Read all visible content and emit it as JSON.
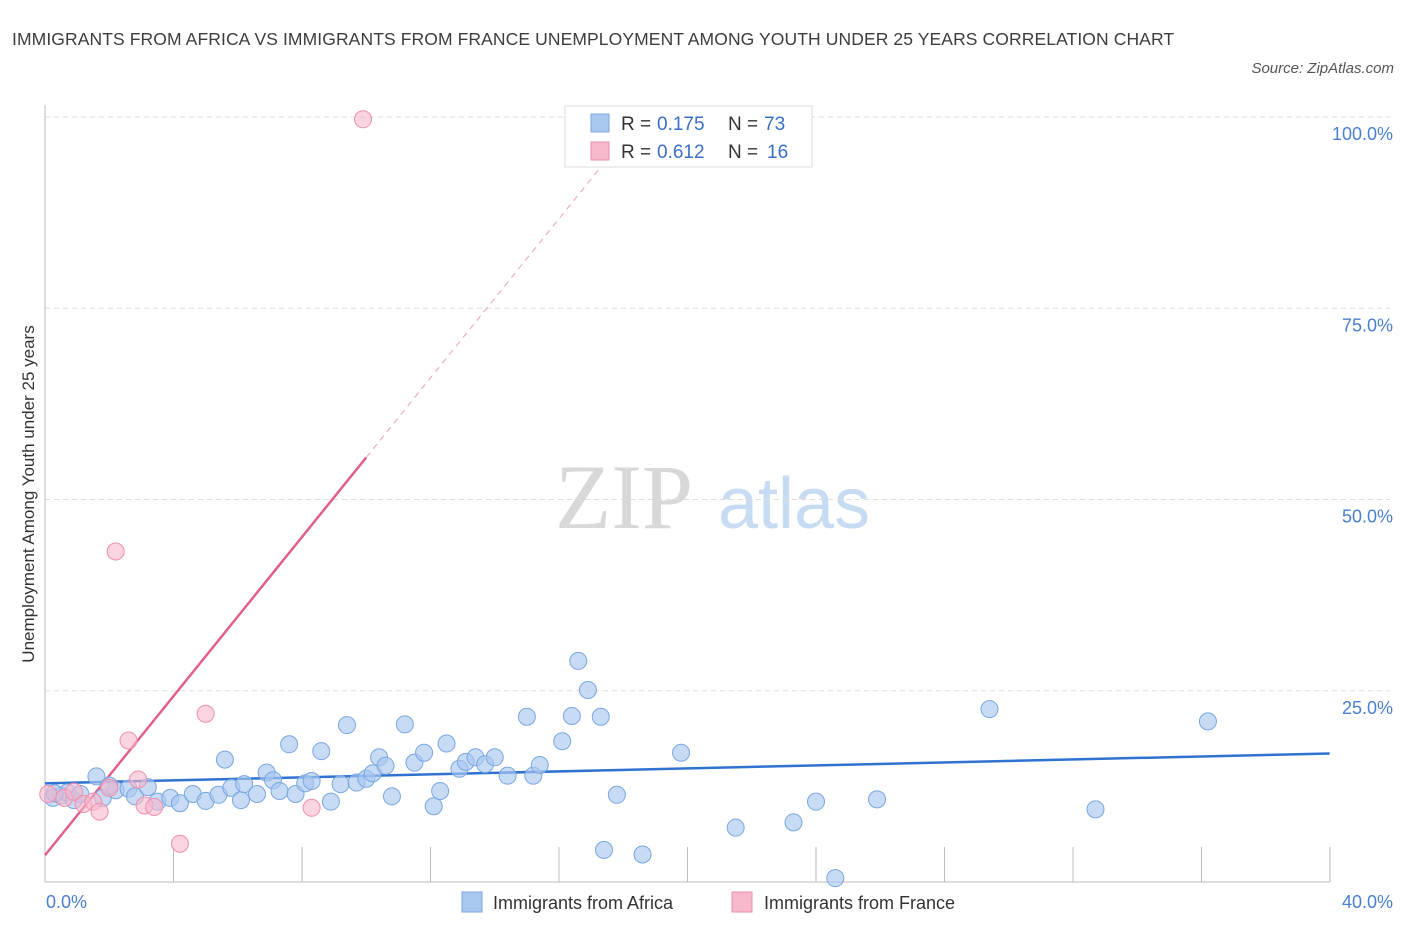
{
  "title": "IMMIGRANTS FROM AFRICA VS IMMIGRANTS FROM FRANCE UNEMPLOYMENT AMONG YOUTH UNDER 25 YEARS CORRELATION CHART",
  "source": "Source: ZipAtlas.com",
  "watermark": {
    "zip": "ZIP",
    "atlas": "atlas"
  },
  "colors": {
    "africa_fill": "#a9c8f0",
    "africa_stroke": "#7aa6e0",
    "africa_line": "#2f72d0",
    "france_fill": "#f7b8cb",
    "france_stroke": "#ee8fae",
    "france_line": "#e0608a",
    "grid": "#dddddd",
    "tick_text": "#4a7fcf"
  },
  "legend": {
    "rows": [
      {
        "r_label": "R = ",
        "r_value": "0.175",
        "n_label": "N = ",
        "n_value": "73"
      },
      {
        "r_label": "R = ",
        "r_value": "0.612",
        "n_label": "N = ",
        "n_value": "16"
      }
    ]
  },
  "chart_data": {
    "type": "scatter",
    "title": "IMMIGRANTS FROM AFRICA VS IMMIGRANTS FROM FRANCE UNEMPLOYMENT AMONG YOUTH UNDER 25 YEARS CORRELATION CHART",
    "xlabel": "",
    "ylabel": "Unemployment Among Youth under 25 years",
    "xlim": [
      0,
      40
    ],
    "ylim": [
      0,
      100
    ],
    "x_tick_labels": [
      "0.0%",
      "40.0%"
    ],
    "y_ticks": [
      25,
      50,
      75,
      100
    ],
    "y_tick_labels": [
      "25.0%",
      "50.0%",
      "75.0%",
      "100.0%"
    ],
    "grid": true,
    "series": [
      {
        "name": "Immigrants from Africa",
        "color": "#a9c8f0",
        "points": [
          [
            0.25,
            11.0
          ],
          [
            0.5,
            11.3
          ],
          [
            0.7,
            11.7
          ],
          [
            0.9,
            10.7
          ],
          [
            1.1,
            11.5
          ],
          [
            1.6,
            13.8
          ],
          [
            1.8,
            11.0
          ],
          [
            2.2,
            12.0
          ],
          [
            2.6,
            12.2
          ],
          [
            2.8,
            11.2
          ],
          [
            3.2,
            12.4
          ],
          [
            3.5,
            10.5
          ],
          [
            3.9,
            11.0
          ],
          [
            4.2,
            10.3
          ],
          [
            4.6,
            11.5
          ],
          [
            5.0,
            10.6
          ],
          [
            5.4,
            11.4
          ],
          [
            5.8,
            12.3
          ],
          [
            5.6,
            16.0
          ],
          [
            6.1,
            10.7
          ],
          [
            6.2,
            12.8
          ],
          [
            6.6,
            11.5
          ],
          [
            6.9,
            14.3
          ],
          [
            7.1,
            13.3
          ],
          [
            7.3,
            11.9
          ],
          [
            7.6,
            18.0
          ],
          [
            7.8,
            11.5
          ],
          [
            8.1,
            12.9
          ],
          [
            8.3,
            13.2
          ],
          [
            8.6,
            17.1
          ],
          [
            8.9,
            10.5
          ],
          [
            9.2,
            12.8
          ],
          [
            9.4,
            20.5
          ],
          [
            9.7,
            13.0
          ],
          [
            10.0,
            13.5
          ],
          [
            10.2,
            14.2
          ],
          [
            10.4,
            16.3
          ],
          [
            10.6,
            15.2
          ],
          [
            10.8,
            11.2
          ],
          [
            11.2,
            20.6
          ],
          [
            11.5,
            15.6
          ],
          [
            11.8,
            16.9
          ],
          [
            12.1,
            9.9
          ],
          [
            12.3,
            11.9
          ],
          [
            12.5,
            18.1
          ],
          [
            12.9,
            14.8
          ],
          [
            13.1,
            15.7
          ],
          [
            13.4,
            16.3
          ],
          [
            13.7,
            15.4
          ],
          [
            14.0,
            16.3
          ],
          [
            14.4,
            13.9
          ],
          [
            15.0,
            21.6
          ],
          [
            15.2,
            13.9
          ],
          [
            15.4,
            15.3
          ],
          [
            16.1,
            18.4
          ],
          [
            16.4,
            21.7
          ],
          [
            16.6,
            28.9
          ],
          [
            16.9,
            25.1
          ],
          [
            17.3,
            21.6
          ],
          [
            17.8,
            11.4
          ],
          [
            17.4,
            4.2
          ],
          [
            18.6,
            3.6
          ],
          [
            19.8,
            16.9
          ],
          [
            21.5,
            7.1
          ],
          [
            23.3,
            7.8
          ],
          [
            24.0,
            10.5
          ],
          [
            24.6,
            0.5
          ],
          [
            25.9,
            10.8
          ],
          [
            29.4,
            22.6
          ],
          [
            32.7,
            9.5
          ],
          [
            36.2,
            21.0
          ],
          [
            0.3,
            11.6
          ],
          [
            2.0,
            12.6
          ]
        ]
      },
      {
        "name": "Immigrants from France",
        "color": "#f7b8cb",
        "points": [
          [
            0.1,
            11.5
          ],
          [
            0.6,
            11.0
          ],
          [
            0.9,
            11.8
          ],
          [
            1.2,
            10.2
          ],
          [
            1.5,
            10.5
          ],
          [
            1.7,
            9.2
          ],
          [
            2.0,
            12.3
          ],
          [
            2.2,
            43.2
          ],
          [
            2.6,
            18.5
          ],
          [
            2.9,
            13.4
          ],
          [
            3.1,
            10.0
          ],
          [
            3.4,
            9.8
          ],
          [
            4.2,
            5.0
          ],
          [
            5.0,
            22.0
          ],
          [
            8.3,
            9.7
          ],
          [
            9.9,
            99.7
          ]
        ]
      }
    ],
    "trend_lines": [
      {
        "series": "Immigrants from Africa",
        "x": [
          0,
          40
        ],
        "y": [
          12.9,
          16.8
        ]
      },
      {
        "series": "Immigrants from France",
        "x": [
          0,
          10.0
        ],
        "y": [
          3.5,
          55.5
        ]
      },
      {
        "series": "Immigrants from France (extrapolated)",
        "x": [
          10.0,
          17.5
        ],
        "y": [
          55.5,
          94.5
        ]
      }
    ]
  }
}
